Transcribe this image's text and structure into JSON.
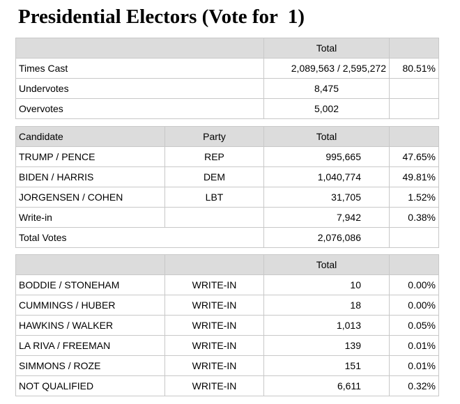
{
  "title": "Presidential Electors (Vote for  1)",
  "summary": {
    "header_total": "Total",
    "rows": [
      {
        "label": "Times Cast",
        "total": "2,089,563 / 2,595,272",
        "pct": "80.51%"
      },
      {
        "label": "Undervotes",
        "total": "8,475",
        "pct": ""
      },
      {
        "label": "Overvotes",
        "total": "5,002",
        "pct": ""
      }
    ]
  },
  "candidates": {
    "headers": {
      "candidate": "Candidate",
      "party": "Party",
      "total": "Total"
    },
    "rows": [
      {
        "name": "TRUMP / PENCE",
        "party": "REP",
        "total": "995,665",
        "pct": "47.65%"
      },
      {
        "name": "BIDEN / HARRIS",
        "party": "DEM",
        "total": "1,040,774",
        "pct": "49.81%"
      },
      {
        "name": "JORGENSEN / COHEN",
        "party": "LBT",
        "total": "31,705",
        "pct": "1.52%"
      },
      {
        "name": "Write-in",
        "party": "",
        "total": "7,942",
        "pct": "0.38%"
      }
    ],
    "total_row": {
      "label": "Total Votes",
      "total": "2,076,086"
    }
  },
  "writeins": {
    "header_total": "Total",
    "rows": [
      {
        "name": "BODDIE / STONEHAM",
        "party": "WRITE-IN",
        "total": "10",
        "pct": "0.00%"
      },
      {
        "name": "CUMMINGS / HUBER",
        "party": "WRITE-IN",
        "total": "18",
        "pct": "0.00%"
      },
      {
        "name": "HAWKINS / WALKER",
        "party": "WRITE-IN",
        "total": "1,013",
        "pct": "0.05%"
      },
      {
        "name": "LA RIVA / FREEMAN",
        "party": "WRITE-IN",
        "total": "139",
        "pct": "0.01%"
      },
      {
        "name": "SIMMONS / ROZE",
        "party": "WRITE-IN",
        "total": "151",
        "pct": "0.01%"
      },
      {
        "name": "NOT QUALIFIED",
        "party": "WRITE-IN",
        "total": "6,611",
        "pct": "0.32%"
      }
    ]
  }
}
